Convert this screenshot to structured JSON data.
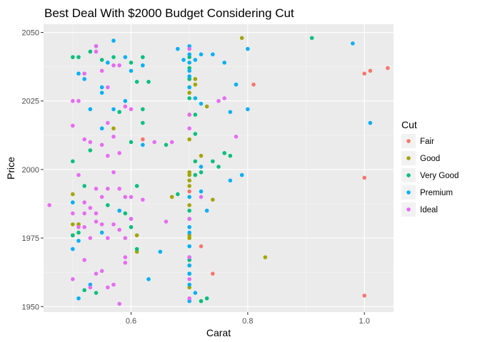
{
  "chart_data": {
    "type": "scatter",
    "title": "Best Deal With $2000 Budget Considering Cut",
    "xlabel": "Carat",
    "ylabel": "Price",
    "xlim": [
      0.45,
      1.05
    ],
    "ylim": [
      1948,
      2053
    ],
    "xticks": [
      0.6,
      0.8,
      1.0
    ],
    "xtick_labels": [
      "0.6",
      "0.8",
      "1.0"
    ],
    "yticks": [
      1950,
      1975,
      2000,
      2025,
      2050
    ],
    "ytick_labels": [
      "1950",
      "1975",
      "2000",
      "2025",
      "2050"
    ],
    "grid": true,
    "legend": {
      "title": "Cut",
      "position": "right"
    },
    "series": [
      {
        "name": "Fair",
        "color": "#F8766D",
        "points": [
          [
            0.62,
            2011
          ],
          [
            0.7,
            1992
          ],
          [
            0.74,
            1962
          ],
          [
            0.81,
            2031
          ],
          [
            1.0,
            2035
          ],
          [
            1.01,
            2036
          ],
          [
            1.04,
            2037
          ],
          [
            1.0,
            1997
          ],
          [
            1.0,
            1954
          ],
          [
            0.72,
            1972
          ],
          [
            0.7,
            2033
          ],
          [
            0.51,
            1980
          ]
        ]
      },
      {
        "name": "Good",
        "color": "#A3A500",
        "points": [
          [
            0.79,
            2048
          ],
          [
            0.5,
            1991
          ],
          [
            0.5,
            1976
          ],
          [
            0.5,
            1980
          ],
          [
            0.51,
            1980
          ],
          [
            0.57,
            2015
          ],
          [
            0.61,
            1976
          ],
          [
            0.61,
            1970
          ],
          [
            0.67,
            1990
          ],
          [
            0.7,
            1999
          ],
          [
            0.7,
            1998
          ],
          [
            0.7,
            1996
          ],
          [
            0.7,
            1994
          ],
          [
            0.7,
            1987
          ],
          [
            0.7,
            1982
          ],
          [
            0.7,
            1976
          ],
          [
            0.7,
            1975
          ],
          [
            0.7,
            1965
          ],
          [
            0.7,
            1957
          ],
          [
            0.7,
            2020
          ],
          [
            0.7,
            2028
          ],
          [
            0.71,
            2033
          ],
          [
            0.71,
            2031
          ],
          [
            0.73,
            2023
          ],
          [
            0.74,
            1989
          ],
          [
            0.83,
            1968
          ],
          [
            0.58,
            1985
          ],
          [
            0.72,
            2005
          ],
          [
            0.7,
            2011
          ]
        ]
      },
      {
        "name": "Very Good",
        "color": "#00BF7D",
        "points": [
          [
            0.5,
            2041
          ],
          [
            0.51,
            2041
          ],
          [
            0.53,
            2043
          ],
          [
            0.54,
            2045
          ],
          [
            0.55,
            2040
          ],
          [
            0.57,
            2041
          ],
          [
            0.58,
            2021
          ],
          [
            0.6,
            2039
          ],
          [
            0.61,
            2032
          ],
          [
            0.62,
            2041
          ],
          [
            0.63,
            2032
          ],
          [
            0.5,
            2003
          ],
          [
            0.52,
            1994
          ],
          [
            0.53,
            2007
          ],
          [
            0.56,
            1987
          ],
          [
            0.59,
            1984
          ],
          [
            0.6,
            2010
          ],
          [
            0.61,
            1994
          ],
          [
            0.62,
            2017
          ],
          [
            0.62,
            2022
          ],
          [
            0.66,
            2009
          ],
          [
            0.68,
            1991
          ],
          [
            0.5,
            1976
          ],
          [
            0.51,
            1977
          ],
          [
            0.52,
            1956
          ],
          [
            0.54,
            1955
          ],
          [
            0.6,
            1979
          ],
          [
            0.61,
            1971
          ],
          [
            0.7,
            2041
          ],
          [
            0.7,
            2037
          ],
          [
            0.7,
            2033
          ],
          [
            0.7,
            2030
          ],
          [
            0.71,
            2013
          ],
          [
            0.71,
            2003
          ],
          [
            0.71,
            1998
          ],
          [
            0.72,
            1999
          ],
          [
            0.73,
            1953
          ],
          [
            0.74,
            2003
          ],
          [
            0.75,
            2001
          ],
          [
            0.76,
            2006
          ],
          [
            0.77,
            2005
          ],
          [
            0.7,
            1985
          ],
          [
            0.7,
            1967
          ],
          [
            0.7,
            1962
          ],
          [
            0.72,
            1952
          ],
          [
            0.91,
            2048
          ],
          [
            0.71,
            2020
          ],
          [
            0.7,
            2026
          ]
        ]
      },
      {
        "name": "Premium",
        "color": "#00B0F6",
        "points": [
          [
            0.57,
            2047
          ],
          [
            0.56,
            2039
          ],
          [
            0.59,
            2041
          ],
          [
            0.6,
            2036
          ],
          [
            0.62,
            2038
          ],
          [
            0.68,
            2044
          ],
          [
            0.69,
            2040
          ],
          [
            0.7,
            2045
          ],
          [
            0.7,
            2042
          ],
          [
            0.71,
            2040
          ],
          [
            0.72,
            2042
          ],
          [
            0.74,
            2042
          ],
          [
            0.76,
            2039
          ],
          [
            0.78,
            2031
          ],
          [
            0.8,
            2044
          ],
          [
            0.51,
            2035
          ],
          [
            0.52,
            2033
          ],
          [
            0.55,
            2030
          ],
          [
            0.55,
            2028
          ],
          [
            0.53,
            2022
          ],
          [
            0.55,
            2015
          ],
          [
            0.57,
            2022
          ],
          [
            0.59,
            2025
          ],
          [
            0.62,
            2009
          ],
          [
            0.7,
            2039
          ],
          [
            0.7,
            2036
          ],
          [
            0.7,
            2034
          ],
          [
            0.7,
            2030
          ],
          [
            0.71,
            2026
          ],
          [
            0.72,
            2024
          ],
          [
            0.77,
            2021
          ],
          [
            0.8,
            2022
          ],
          [
            0.79,
            1998
          ],
          [
            0.77,
            1996
          ],
          [
            0.72,
            2001
          ],
          [
            0.72,
            1992
          ],
          [
            0.7,
            1990
          ],
          [
            0.5,
            1988
          ],
          [
            0.51,
            1974
          ],
          [
            0.5,
            1971
          ],
          [
            0.51,
            1953
          ],
          [
            0.53,
            1958
          ],
          [
            0.55,
            1977
          ],
          [
            0.58,
            1985
          ],
          [
            0.6,
            1982
          ],
          [
            0.63,
            1960
          ],
          [
            0.65,
            1970
          ],
          [
            0.7,
            1982
          ],
          [
            0.7,
            1979
          ],
          [
            0.7,
            1977
          ],
          [
            0.7,
            1972
          ],
          [
            0.7,
            1968
          ],
          [
            0.7,
            1965
          ],
          [
            0.7,
            1962
          ],
          [
            0.7,
            1958
          ],
          [
            0.71,
            1955
          ],
          [
            0.7,
            1952
          ],
          [
            0.98,
            2046
          ],
          [
            1.01,
            2017
          ],
          [
            0.73,
            1985
          ]
        ]
      },
      {
        "name": "Ideal",
        "color": "#E76BF3",
        "points": [
          [
            0.46,
            1987
          ],
          [
            0.5,
            2025
          ],
          [
            0.51,
            2025
          ],
          [
            0.5,
            2016
          ],
          [
            0.52,
            2035
          ],
          [
            0.54,
            2045
          ],
          [
            0.54,
            2043
          ],
          [
            0.55,
            2036
          ],
          [
            0.57,
            2038
          ],
          [
            0.58,
            2038
          ],
          [
            0.59,
            2023
          ],
          [
            0.6,
            2022
          ],
          [
            0.56,
            2030
          ],
          [
            0.56,
            2017
          ],
          [
            0.57,
            2012
          ],
          [
            0.55,
            2009
          ],
          [
            0.56,
            2005
          ],
          [
            0.53,
            2010
          ],
          [
            0.51,
            1998
          ],
          [
            0.52,
            1988
          ],
          [
            0.53,
            1986
          ],
          [
            0.54,
            1984
          ],
          [
            0.55,
            1990
          ],
          [
            0.54,
            1993
          ],
          [
            0.56,
            1993
          ],
          [
            0.57,
            1999
          ],
          [
            0.58,
            1993
          ],
          [
            0.59,
            1990
          ],
          [
            0.6,
            1990
          ],
          [
            0.62,
            1989
          ],
          [
            0.5,
            1984
          ],
          [
            0.51,
            1979
          ],
          [
            0.52,
            1984
          ],
          [
            0.52,
            1979
          ],
          [
            0.53,
            1975
          ],
          [
            0.54,
            1981
          ],
          [
            0.55,
            1980
          ],
          [
            0.56,
            1975
          ],
          [
            0.57,
            1980
          ],
          [
            0.58,
            1978
          ],
          [
            0.59,
            1975
          ],
          [
            0.6,
            1982
          ],
          [
            0.5,
            1960
          ],
          [
            0.52,
            1967
          ],
          [
            0.53,
            1957
          ],
          [
            0.54,
            1962
          ],
          [
            0.55,
            1963
          ],
          [
            0.56,
            1957
          ],
          [
            0.57,
            1958
          ],
          [
            0.58,
            1951
          ],
          [
            0.59,
            1968
          ],
          [
            0.59,
            1966
          ],
          [
            0.64,
            2010
          ],
          [
            0.67,
            2010
          ],
          [
            0.66,
            1981
          ],
          [
            0.7,
            2044
          ],
          [
            0.7,
            2020
          ],
          [
            0.7,
            2015
          ],
          [
            0.75,
            2025
          ],
          [
            0.76,
            2026
          ],
          [
            0.78,
            2012
          ],
          [
            0.72,
            1990
          ],
          [
            0.7,
            1982
          ],
          [
            0.7,
            1968
          ],
          [
            0.7,
            1960
          ],
          [
            0.7,
            1953
          ],
          [
            0.58,
            2006
          ],
          [
            0.52,
            2011
          ]
        ]
      }
    ]
  }
}
